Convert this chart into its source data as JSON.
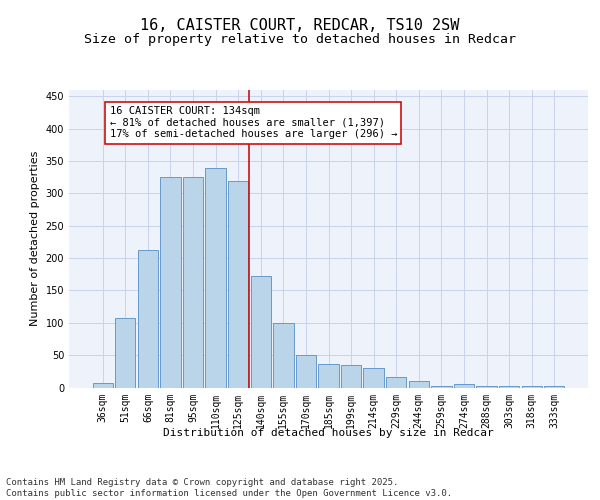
{
  "title": "16, CAISTER COURT, REDCAR, TS10 2SW",
  "subtitle": "Size of property relative to detached houses in Redcar",
  "xlabel": "Distribution of detached houses by size in Redcar",
  "ylabel": "Number of detached properties",
  "categories": [
    "36sqm",
    "51sqm",
    "66sqm",
    "81sqm",
    "95sqm",
    "110sqm",
    "125sqm",
    "140sqm",
    "155sqm",
    "170sqm",
    "185sqm",
    "199sqm",
    "214sqm",
    "229sqm",
    "244sqm",
    "259sqm",
    "274sqm",
    "288sqm",
    "303sqm",
    "318sqm",
    "333sqm"
  ],
  "values": [
    7,
    107,
    212,
    325,
    325,
    340,
    320,
    173,
    100,
    51,
    36,
    35,
    30,
    17,
    10,
    3,
    6,
    3,
    2,
    2,
    2
  ],
  "bar_color": "#bad4ea",
  "bar_edge_color": "#6699cc",
  "background_color": "#eef2fb",
  "grid_color": "#c8d4ec",
  "vline_color": "#cc1111",
  "vline_index": 6.5,
  "annotation_text": "16 CAISTER COURT: 134sqm\n← 81% of detached houses are smaller (1,397)\n17% of semi-detached houses are larger (296) →",
  "annotation_box_facecolor": "#ffffff",
  "annotation_box_edgecolor": "#cc1111",
  "footer": "Contains HM Land Registry data © Crown copyright and database right 2025.\nContains public sector information licensed under the Open Government Licence v3.0.",
  "ylim": [
    0,
    460
  ],
  "yticks": [
    0,
    50,
    100,
    150,
    200,
    250,
    300,
    350,
    400,
    450
  ],
  "title_fontsize": 11,
  "subtitle_fontsize": 9.5,
  "ylabel_fontsize": 8,
  "xlabel_fontsize": 8,
  "tick_fontsize": 7,
  "annotation_fontsize": 7.5,
  "footer_fontsize": 6.5
}
